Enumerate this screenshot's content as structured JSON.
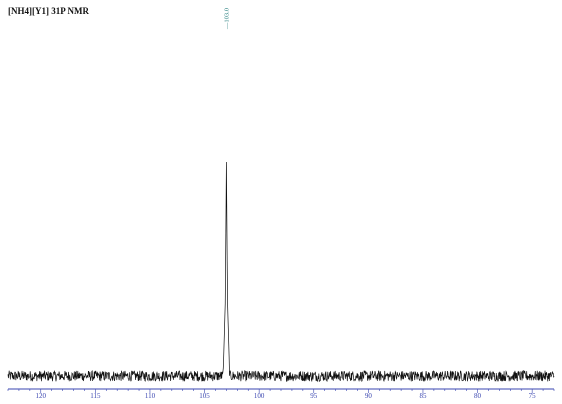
{
  "chart_data": {
    "type": "line",
    "title": "[NH4][Y1] 31P NMR",
    "xlabel": "",
    "ylabel": "",
    "xlim": [
      123,
      73
    ],
    "x_reversed": true,
    "x_ticks": [
      "120",
      "115",
      "110",
      "105",
      "100",
      "95",
      "90",
      "85",
      "80",
      "75"
    ],
    "peak_labels": [
      {
        "x": 103.0,
        "text": "—103.0"
      }
    ],
    "series": [
      {
        "points": [
          {
            "x": 123.0,
            "y": 0.0
          },
          {
            "x": 103.3,
            "y": 0.0
          },
          {
            "x": 103.1,
            "y": 0.35
          },
          {
            "x": 103.0,
            "y": 1.0
          },
          {
            "x": 102.9,
            "y": 0.35
          },
          {
            "x": 102.7,
            "y": 0.0
          },
          {
            "x": 73.0,
            "y": 0.0
          }
        ],
        "noise_amplitude": 0.025
      }
    ],
    "colors": {
      "trace": "#111111",
      "axis": "#3a46b0",
      "tick_label": "#3a46b0",
      "peak_label": "#1f7a7a"
    },
    "grid": false
  }
}
